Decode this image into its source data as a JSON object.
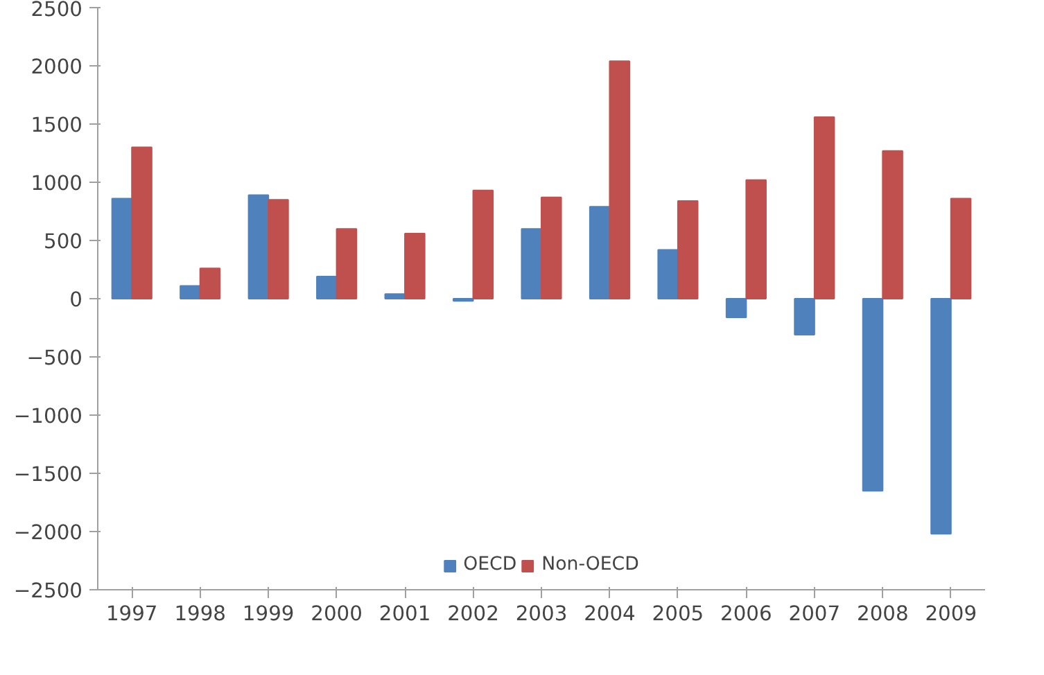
{
  "chart_data": {
    "type": "bar",
    "categories": [
      "1997",
      "1998",
      "1999",
      "2000",
      "2001",
      "2002",
      "2003",
      "2004",
      "2005",
      "2006",
      "2007",
      "2008",
      "2009"
    ],
    "series": [
      {
        "name": "OECD",
        "color": "#4f81bd",
        "values": [
          860,
          110,
          890,
          190,
          40,
          -20,
          600,
          790,
          420,
          -160,
          -310,
          -1650,
          -2020
        ]
      },
      {
        "name": "Non-OECD",
        "color": "#c0504d",
        "values": [
          1300,
          260,
          850,
          600,
          560,
          930,
          870,
          2040,
          840,
          1020,
          1560,
          1270,
          860
        ]
      }
    ],
    "ylim": [
      -2500,
      2500
    ],
    "yticks": [
      -2500,
      -2000,
      -1500,
      -1000,
      -500,
      0,
      500,
      1000,
      1500,
      2000,
      2500
    ],
    "grid": false,
    "legend": "bottom"
  }
}
